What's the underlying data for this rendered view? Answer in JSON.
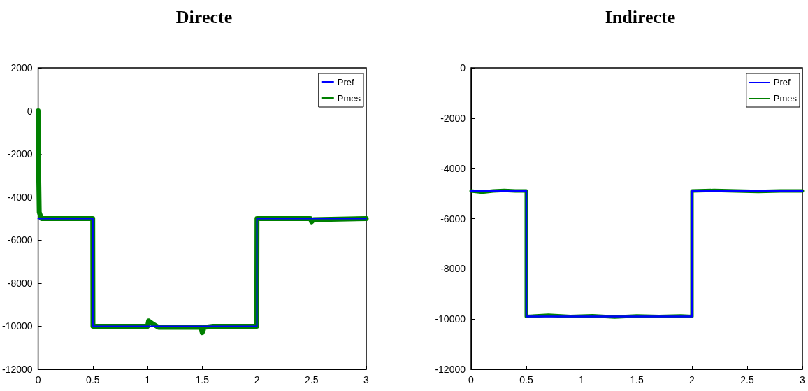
{
  "chart_data": [
    {
      "type": "line",
      "title": "Directe",
      "xlim": [
        0,
        3
      ],
      "xticks": [
        0,
        0.5,
        1,
        1.5,
        2,
        2.5,
        3
      ],
      "ylim": [
        -12000,
        2000
      ],
      "yticks": [
        -12000,
        -10000,
        -8000,
        -6000,
        -4000,
        -2000,
        0,
        2000
      ],
      "grid": false,
      "legend": "top right",
      "marker": "none",
      "line_style": "solid",
      "series": [
        {
          "name": "Pref",
          "color": "#0000ff",
          "x": [
            0,
            0.5,
            0.5,
            2,
            2,
            3
          ],
          "values": [
            -5000,
            -5000,
            -10000,
            -10000,
            -5000,
            -5000
          ]
        },
        {
          "name": "Pmes",
          "color": "#008000",
          "x": [
            0,
            0.005,
            0.01,
            0.03,
            0.499,
            0.501,
            1.0,
            1.01,
            1.05,
            1.1,
            1.49,
            1.5,
            1.52,
            1.6,
            1.999,
            2.001,
            2.49,
            2.5,
            2.52,
            3
          ],
          "values": [
            0,
            -3000,
            -4700,
            -5000,
            -5000,
            -10000,
            -10000,
            -9750,
            -9900,
            -10050,
            -10050,
            -10300,
            -10050,
            -10000,
            -10000,
            -5000,
            -5000,
            -5150,
            -5050,
            -5000
          ]
        }
      ]
    },
    {
      "type": "line",
      "title": "Indirecte",
      "xlim": [
        0,
        3
      ],
      "xticks": [
        0,
        0.5,
        1,
        1.5,
        2,
        2.5,
        3
      ],
      "ylim": [
        -12000,
        0
      ],
      "yticks": [
        -12000,
        -10000,
        -8000,
        -6000,
        -4000,
        -2000,
        0
      ],
      "grid": false,
      "legend": "top right",
      "marker": "none",
      "line_style": "solid",
      "series": [
        {
          "name": "Pref",
          "color": "#0000ff",
          "x": [
            0,
            0.5,
            0.5,
            2,
            2,
            3
          ],
          "values": [
            -4900,
            -4900,
            -9900,
            -9900,
            -4900,
            -4900
          ]
        },
        {
          "name": "Pmes",
          "color": "#008000",
          "x": [
            0,
            0.1,
            0.2,
            0.3,
            0.4,
            0.5,
            0.5,
            0.7,
            0.9,
            1.1,
            1.3,
            1.5,
            1.7,
            1.9,
            2,
            2,
            2.2,
            2.4,
            2.6,
            2.8,
            3
          ],
          "values": [
            -4900,
            -4950,
            -4900,
            -4880,
            -4900,
            -4900,
            -9900,
            -9850,
            -9900,
            -9870,
            -9920,
            -9880,
            -9900,
            -9880,
            -9900,
            -4900,
            -4880,
            -4900,
            -4920,
            -4900,
            -4900
          ]
        }
      ]
    }
  ]
}
